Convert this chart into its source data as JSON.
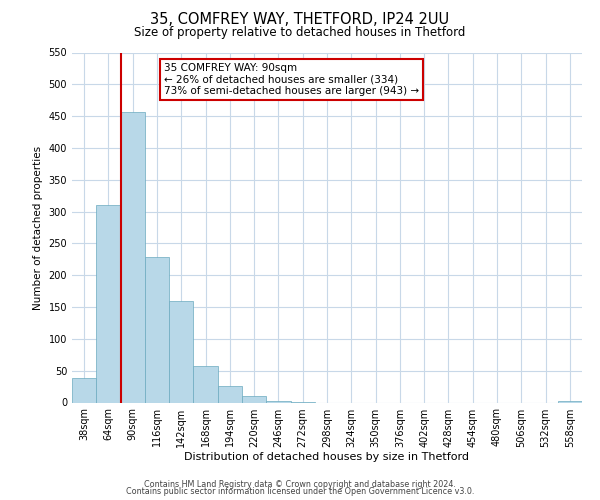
{
  "title": "35, COMFREY WAY, THETFORD, IP24 2UU",
  "subtitle": "Size of property relative to detached houses in Thetford",
  "xlabel": "Distribution of detached houses by size in Thetford",
  "ylabel": "Number of detached properties",
  "bin_labels": [
    "38sqm",
    "64sqm",
    "90sqm",
    "116sqm",
    "142sqm",
    "168sqm",
    "194sqm",
    "220sqm",
    "246sqm",
    "272sqm",
    "298sqm",
    "324sqm",
    "350sqm",
    "376sqm",
    "402sqm",
    "428sqm",
    "454sqm",
    "480sqm",
    "506sqm",
    "532sqm",
    "558sqm"
  ],
  "bar_values": [
    38,
    311,
    457,
    228,
    160,
    57,
    26,
    11,
    3,
    1,
    0,
    0,
    0,
    0,
    0,
    0,
    0,
    0,
    0,
    0,
    2
  ],
  "bar_color": "#b8d8e8",
  "bar_edgecolor": "#6aaabf",
  "property_line_x": 1.5,
  "property_line_color": "#cc0000",
  "ylim": [
    0,
    550
  ],
  "yticks": [
    0,
    50,
    100,
    150,
    200,
    250,
    300,
    350,
    400,
    450,
    500,
    550
  ],
  "annotation_title": "35 COMFREY WAY: 90sqm",
  "annotation_line1": "← 26% of detached houses are smaller (334)",
  "annotation_line2": "73% of semi-detached houses are larger (943) →",
  "annotation_box_color": "#ffffff",
  "annotation_box_edgecolor": "#cc0000",
  "footer_line1": "Contains HM Land Registry data © Crown copyright and database right 2024.",
  "footer_line2": "Contains public sector information licensed under the Open Government Licence v3.0.",
  "background_color": "#ffffff",
  "grid_color": "#c8d8e8"
}
